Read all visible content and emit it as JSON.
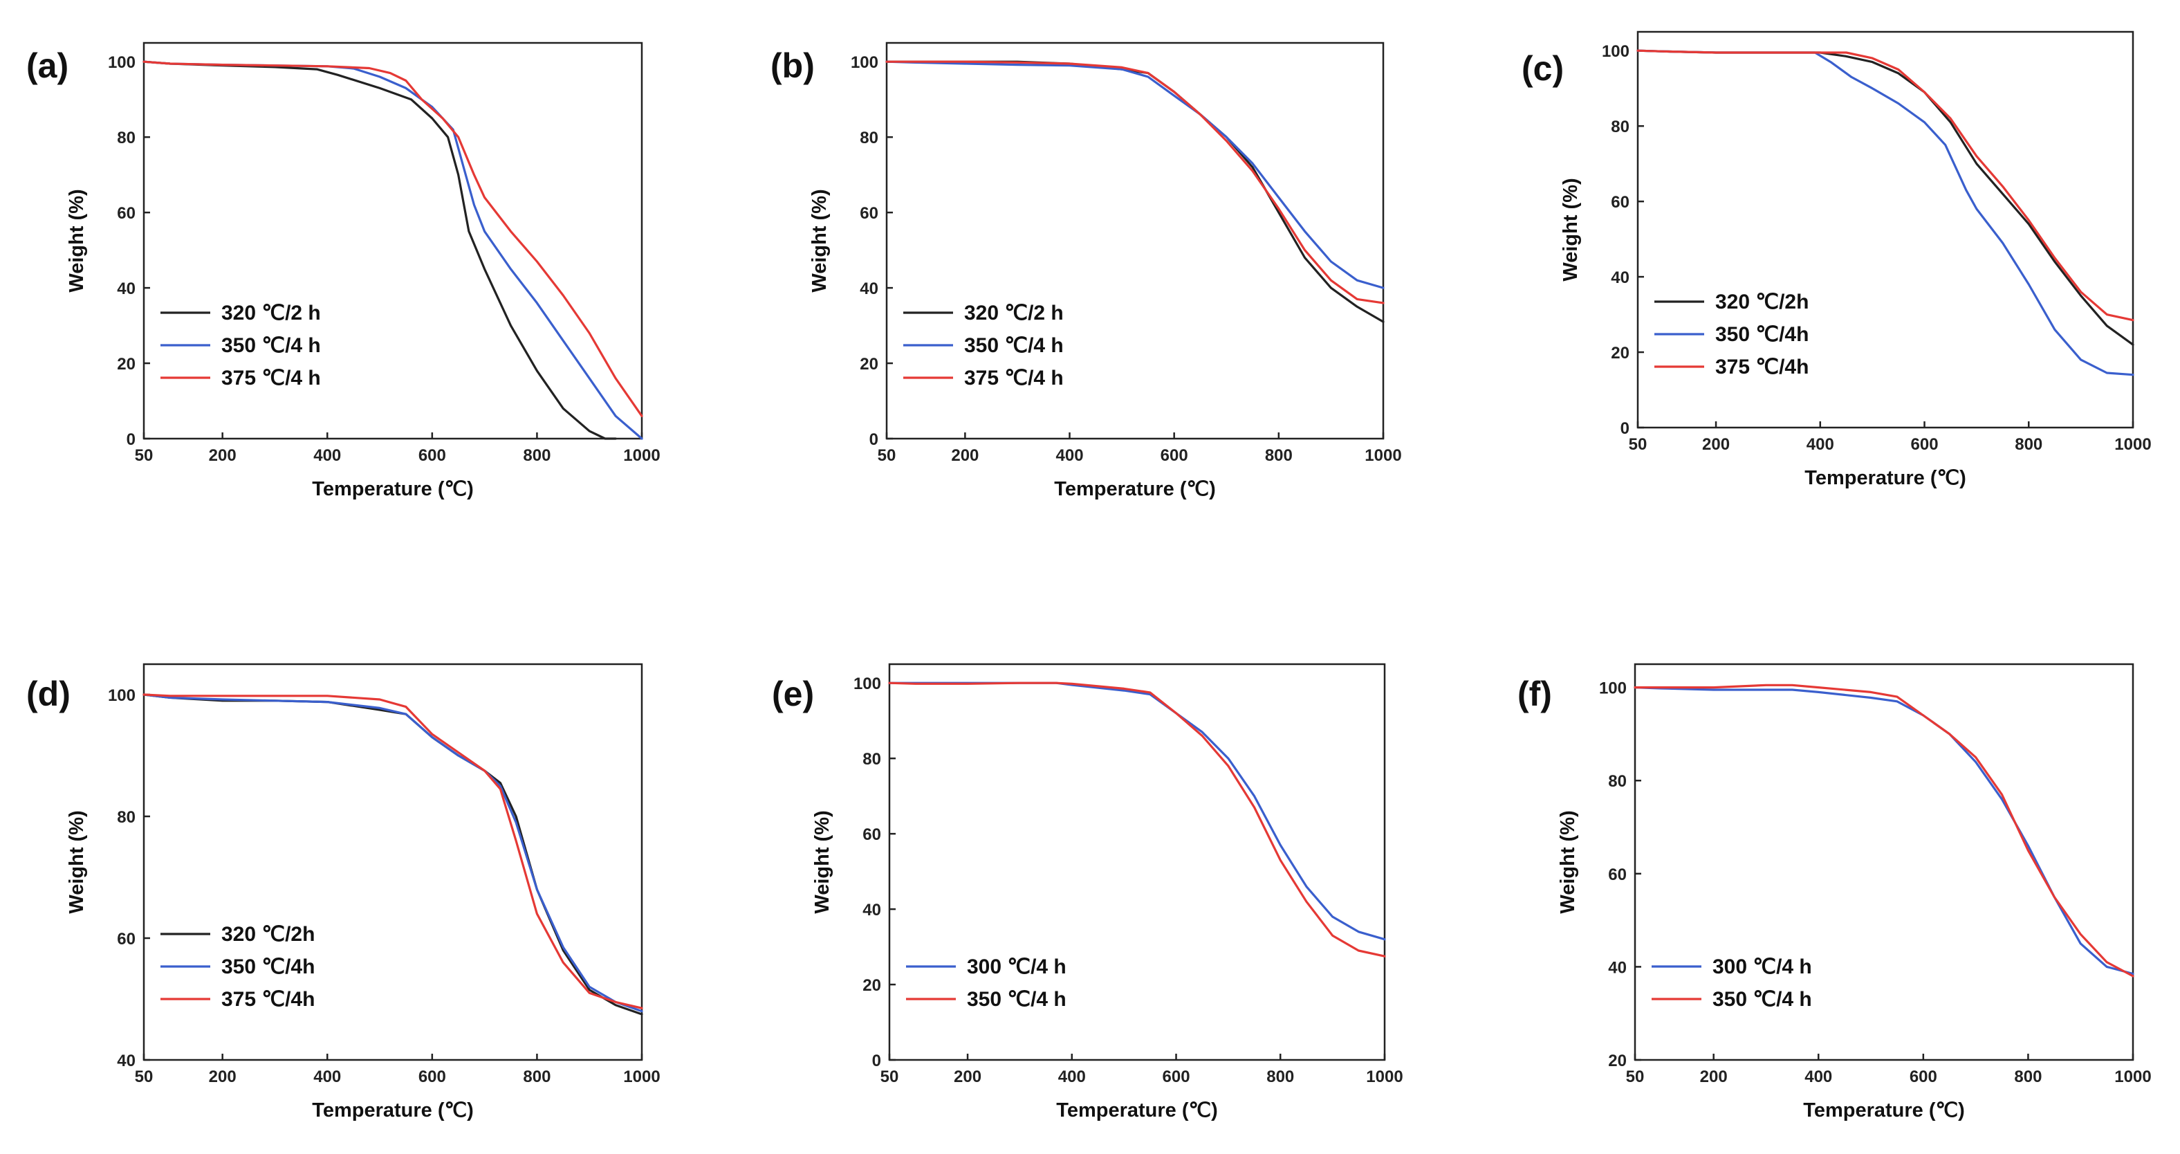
{
  "chart_data": [
    {
      "panel": "(a)",
      "type": "line",
      "xlabel": "Temperature (℃)",
      "ylabel": "Weight (%)",
      "xlim": [
        50,
        1000
      ],
      "ylim": [
        0,
        105
      ],
      "xticks": [
        50,
        200,
        400,
        600,
        800,
        1000
      ],
      "yticks": [
        0,
        20,
        40,
        60,
        80,
        100
      ],
      "legend_position": "bottom-left",
      "series": [
        {
          "name": "320 ℃/2 h",
          "color": "#222222",
          "x": [
            50,
            100,
            200,
            300,
            380,
            420,
            500,
            560,
            600,
            630,
            650,
            670,
            700,
            750,
            800,
            850,
            900,
            930,
            950
          ],
          "y": [
            100,
            99.5,
            99,
            98.6,
            98,
            96.5,
            93,
            90,
            85,
            80,
            70,
            55,
            45,
            30,
            18,
            8,
            2,
            0,
            0
          ]
        },
        {
          "name": "350 ℃/4 h",
          "color": "#3a5fcd",
          "x": [
            50,
            100,
            200,
            300,
            400,
            450,
            500,
            550,
            600,
            640,
            660,
            680,
            700,
            750,
            800,
            850,
            900,
            950,
            1000
          ],
          "y": [
            100,
            99.5,
            99.2,
            99,
            98.8,
            98.2,
            96,
            93,
            88,
            82,
            72,
            62,
            55,
            45,
            36,
            26,
            16,
            6,
            0
          ]
        },
        {
          "name": "375 ℃/4 h",
          "color": "#e53935",
          "x": [
            50,
            100,
            200,
            300,
            400,
            480,
            520,
            550,
            580,
            620,
            650,
            680,
            700,
            750,
            800,
            850,
            900,
            950,
            1000
          ],
          "y": [
            100,
            99.5,
            99.2,
            99,
            98.8,
            98.3,
            97,
            95,
            90,
            85,
            80,
            70,
            64,
            55,
            47,
            38,
            28,
            16,
            6
          ]
        }
      ]
    },
    {
      "panel": "(b)",
      "type": "line",
      "xlabel": "Temperature (℃)",
      "ylabel": "Weight (%)",
      "xlim": [
        50,
        1000
      ],
      "ylim": [
        0,
        105
      ],
      "xticks": [
        50,
        200,
        400,
        600,
        800,
        1000
      ],
      "yticks": [
        0,
        20,
        40,
        60,
        80,
        100
      ],
      "legend_position": "bottom-left",
      "series": [
        {
          "name": "320 ℃/2 h",
          "color": "#222222",
          "x": [
            50,
            100,
            200,
            300,
            400,
            500,
            550,
            600,
            650,
            700,
            750,
            800,
            850,
            900,
            950,
            1000
          ],
          "y": [
            100,
            100,
            100,
            100,
            99.5,
            98,
            97,
            92,
            86,
            80,
            72,
            60,
            48,
            40,
            35,
            31
          ]
        },
        {
          "name": "350 ℃/4 h",
          "color": "#3a5fcd",
          "x": [
            50,
            100,
            200,
            300,
            400,
            500,
            550,
            600,
            650,
            700,
            750,
            800,
            850,
            900,
            950,
            1000
          ],
          "y": [
            100,
            99.8,
            99.5,
            99.2,
            99,
            98,
            96,
            91,
            86,
            80,
            73,
            64,
            55,
            47,
            42,
            40
          ]
        },
        {
          "name": "375 ℃/4 h",
          "color": "#e53935",
          "x": [
            50,
            100,
            200,
            300,
            400,
            500,
            550,
            600,
            650,
            700,
            750,
            800,
            850,
            900,
            950,
            1000
          ],
          "y": [
            100,
            100,
            100,
            99.8,
            99.5,
            98.5,
            97,
            92,
            86,
            79,
            71,
            61,
            50,
            42,
            37,
            36
          ]
        }
      ]
    },
    {
      "panel": "(c)",
      "type": "line",
      "xlabel": "Temperature (℃)",
      "ylabel": "Weight (%)",
      "xlim": [
        50,
        1000
      ],
      "ylim": [
        0,
        105
      ],
      "xticks": [
        50,
        200,
        400,
        600,
        800,
        1000
      ],
      "yticks": [
        0,
        20,
        40,
        60,
        80,
        100
      ],
      "legend_position": "bottom-left",
      "series": [
        {
          "name": "320 ℃/2h",
          "color": "#222222",
          "x": [
            50,
            100,
            200,
            300,
            400,
            450,
            500,
            550,
            600,
            650,
            700,
            750,
            800,
            850,
            900,
            950,
            1000
          ],
          "y": [
            100,
            99.8,
            99.5,
            99.5,
            99.5,
            98.5,
            97,
            94,
            89,
            81,
            70,
            62,
            54,
            44,
            35,
            27,
            22
          ]
        },
        {
          "name": "350 ℃/4h",
          "color": "#3a5fcd",
          "x": [
            50,
            100,
            200,
            300,
            390,
            420,
            460,
            500,
            550,
            600,
            640,
            680,
            700,
            750,
            800,
            850,
            900,
            950,
            1000
          ],
          "y": [
            100,
            99.8,
            99.5,
            99.5,
            99.5,
            97,
            93,
            90,
            86,
            81,
            75,
            63,
            58,
            49,
            38,
            26,
            18,
            14.5,
            14
          ]
        },
        {
          "name": "375 ℃/4h",
          "color": "#e53935",
          "x": [
            50,
            100,
            200,
            300,
            400,
            450,
            500,
            550,
            600,
            650,
            700,
            750,
            800,
            850,
            900,
            950,
            1000
          ],
          "y": [
            100,
            99.8,
            99.5,
            99.5,
            99.5,
            99.5,
            98,
            95,
            89,
            82,
            72,
            64,
            55,
            45,
            36,
            30,
            28.5
          ]
        }
      ]
    },
    {
      "panel": "(d)",
      "type": "line",
      "xlabel": "Temperature (℃)",
      "ylabel": "Weight (%)",
      "xlim": [
        50,
        1000
      ],
      "ylim": [
        40,
        105
      ],
      "xticks": [
        50,
        200,
        400,
        600,
        800,
        1000
      ],
      "yticks": [
        40,
        60,
        80,
        100
      ],
      "legend_position": "bottom-left",
      "series": [
        {
          "name": "320 ℃/2h",
          "color": "#222222",
          "x": [
            50,
            100,
            200,
            300,
            400,
            500,
            550,
            600,
            650,
            700,
            730,
            760,
            800,
            850,
            900,
            950,
            1000
          ],
          "y": [
            100,
            99.5,
            99,
            99,
            98.8,
            97.5,
            96.8,
            93,
            90,
            87.5,
            85.5,
            80,
            68,
            58,
            51.5,
            49,
            47.5
          ]
        },
        {
          "name": "350 ℃/4h",
          "color": "#3a5fcd",
          "x": [
            50,
            100,
            200,
            300,
            400,
            500,
            550,
            600,
            650,
            700,
            730,
            760,
            800,
            850,
            900,
            950,
            1000
          ],
          "y": [
            100,
            99.5,
            99.2,
            99,
            98.8,
            97.8,
            96.8,
            93,
            90,
            87.5,
            85,
            79,
            68,
            58.5,
            52,
            49.5,
            48
          ]
        },
        {
          "name": "375 ℃/4h",
          "color": "#e53935",
          "x": [
            50,
            100,
            200,
            300,
            400,
            500,
            550,
            600,
            650,
            700,
            730,
            760,
            800,
            850,
            900,
            950,
            1000
          ],
          "y": [
            100,
            99.8,
            99.8,
            99.8,
            99.8,
            99.2,
            98,
            93.5,
            90.5,
            87.5,
            84.5,
            76,
            64,
            56,
            51,
            49.5,
            48.5
          ]
        }
      ]
    },
    {
      "panel": "(e)",
      "type": "line",
      "xlabel": "Temperature (℃)",
      "ylabel": "Weight (%)",
      "xlim": [
        50,
        1000
      ],
      "ylim": [
        0,
        105
      ],
      "xticks": [
        50,
        200,
        400,
        600,
        800,
        1000
      ],
      "yticks": [
        0,
        20,
        40,
        60,
        80,
        100
      ],
      "legend_position": "bottom-left",
      "series": [
        {
          "name": "300 ℃/4 h",
          "color": "#3a5fcd",
          "x": [
            50,
            100,
            200,
            300,
            370,
            400,
            500,
            550,
            600,
            650,
            700,
            750,
            800,
            850,
            900,
            950,
            1000
          ],
          "y": [
            100,
            100,
            100,
            100,
            100,
            99.5,
            98,
            97,
            92,
            87,
            80,
            70,
            57,
            46,
            38,
            34,
            32
          ]
        },
        {
          "name": "350 ℃/4 h",
          "color": "#e53935",
          "x": [
            50,
            100,
            200,
            300,
            370,
            400,
            500,
            550,
            600,
            650,
            700,
            750,
            800,
            850,
            900,
            950,
            1000
          ],
          "y": [
            100,
            99.8,
            99.8,
            100,
            100,
            99.8,
            98.5,
            97.5,
            92,
            86,
            78,
            67,
            53,
            42,
            33,
            29,
            27.5
          ]
        }
      ]
    },
    {
      "panel": "(f)",
      "type": "line",
      "xlabel": "Temperature (℃)",
      "ylabel": "Weight (%)",
      "xlim": [
        50,
        1000
      ],
      "ylim": [
        20,
        105
      ],
      "xticks": [
        50,
        200,
        400,
        600,
        800,
        1000
      ],
      "yticks": [
        20,
        40,
        60,
        80,
        100
      ],
      "legend_position": "bottom-left",
      "series": [
        {
          "name": "300 ℃/4 h",
          "color": "#3a5fcd",
          "x": [
            50,
            100,
            200,
            300,
            350,
            400,
            500,
            550,
            600,
            650,
            700,
            750,
            800,
            850,
            900,
            950,
            1000
          ],
          "y": [
            100,
            99.8,
            99.5,
            99.5,
            99.5,
            99,
            97.8,
            97,
            94,
            90,
            84,
            76,
            66,
            55,
            45,
            40,
            38.5
          ]
        },
        {
          "name": "350 ℃/4 h",
          "color": "#e53935",
          "x": [
            50,
            100,
            200,
            300,
            350,
            400,
            500,
            550,
            600,
            650,
            700,
            750,
            800,
            850,
            900,
            950,
            1000
          ],
          "y": [
            100,
            100,
            100,
            100.5,
            100.5,
            100,
            99,
            98,
            94,
            90,
            85,
            77,
            65,
            55,
            47,
            41,
            38
          ]
        }
      ]
    }
  ]
}
